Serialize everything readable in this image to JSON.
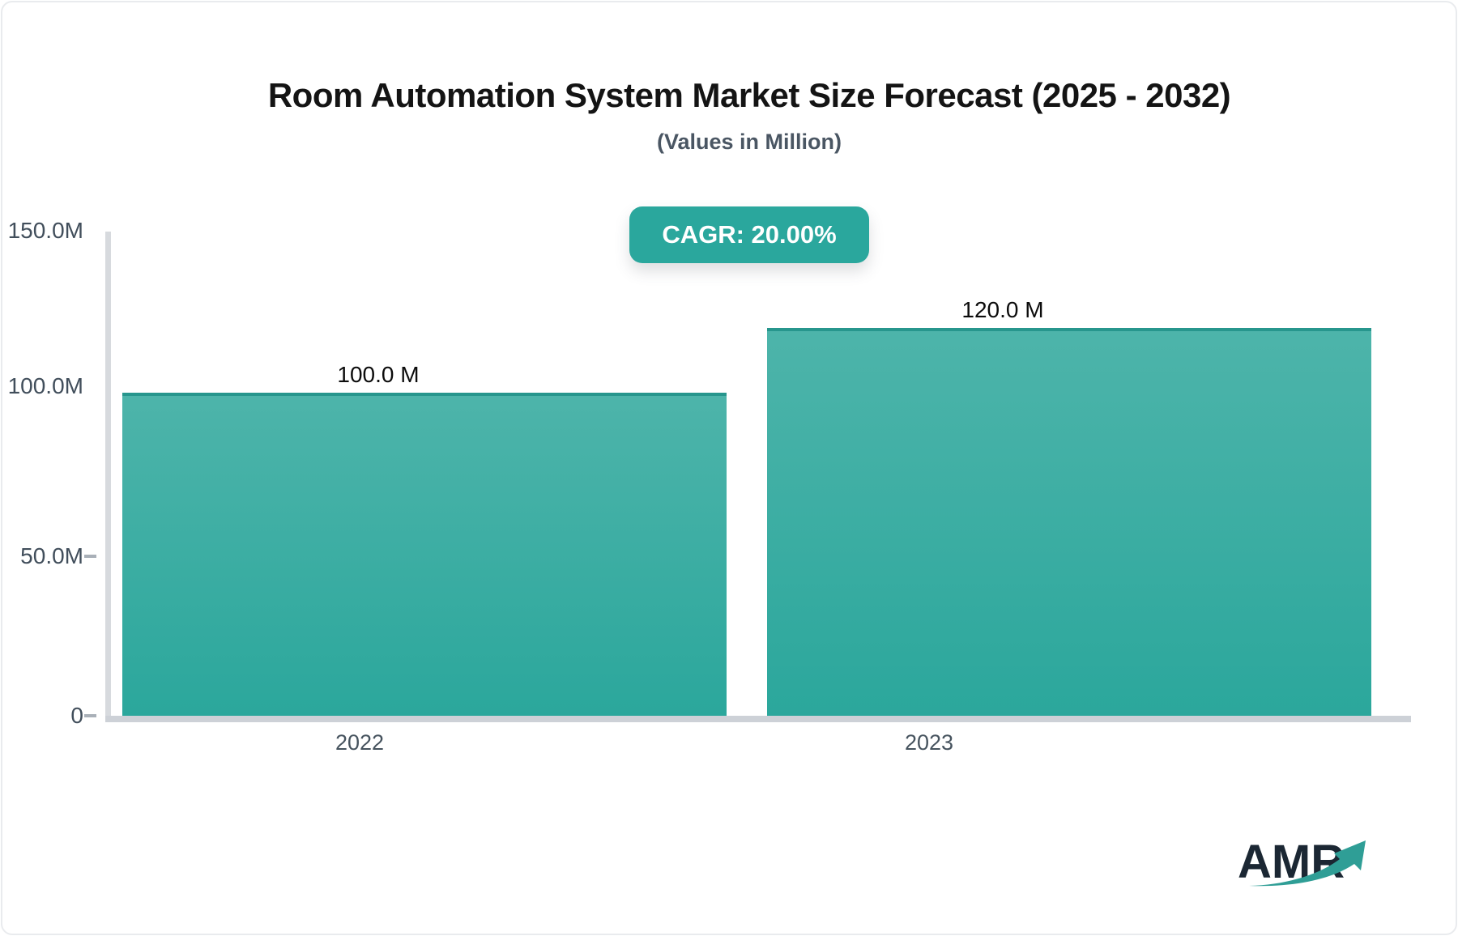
{
  "page": {
    "background": "#ffffff",
    "border_color": "#e9ebee"
  },
  "header": {
    "title": "Room Automation System Market Size Forecast (2025 - 2032)",
    "subtitle": "(Values in Million)"
  },
  "badge": {
    "label": "CAGR: 20.00%",
    "bg_color": "#2aa79d",
    "text_color": "#ffffff"
  },
  "chart_data": {
    "type": "bar",
    "categories": [
      "2022",
      "2023"
    ],
    "values": [
      100.0,
      120.0
    ],
    "value_labels": [
      "100.0 M",
      "120.0 M"
    ],
    "unit": "Million",
    "title": "Room Automation System Market Size Forecast (2025 - 2032)",
    "subtitle": "(Values in Million)",
    "xlabel": "",
    "ylabel": "",
    "ylim": [
      0,
      150
    ],
    "ytick_labels": [
      "150.0M",
      "100.0M",
      "50.0M",
      "0"
    ],
    "ytick_values": [
      150,
      100,
      50,
      0
    ],
    "grid": "off",
    "legend": "none",
    "bar_gradient": [
      "#4db4aa",
      "#2ba79c"
    ],
    "bar_top_border": "#27968d",
    "axis_color": "#d7dade",
    "baseline_color": "#cdd1d7",
    "tick_text_color": "#414e5b"
  },
  "logo": {
    "text": "AMR",
    "text_color": "#1b2733",
    "arrow_color": "#2f9e96",
    "arrow_icon": "trend-up-arrow"
  }
}
